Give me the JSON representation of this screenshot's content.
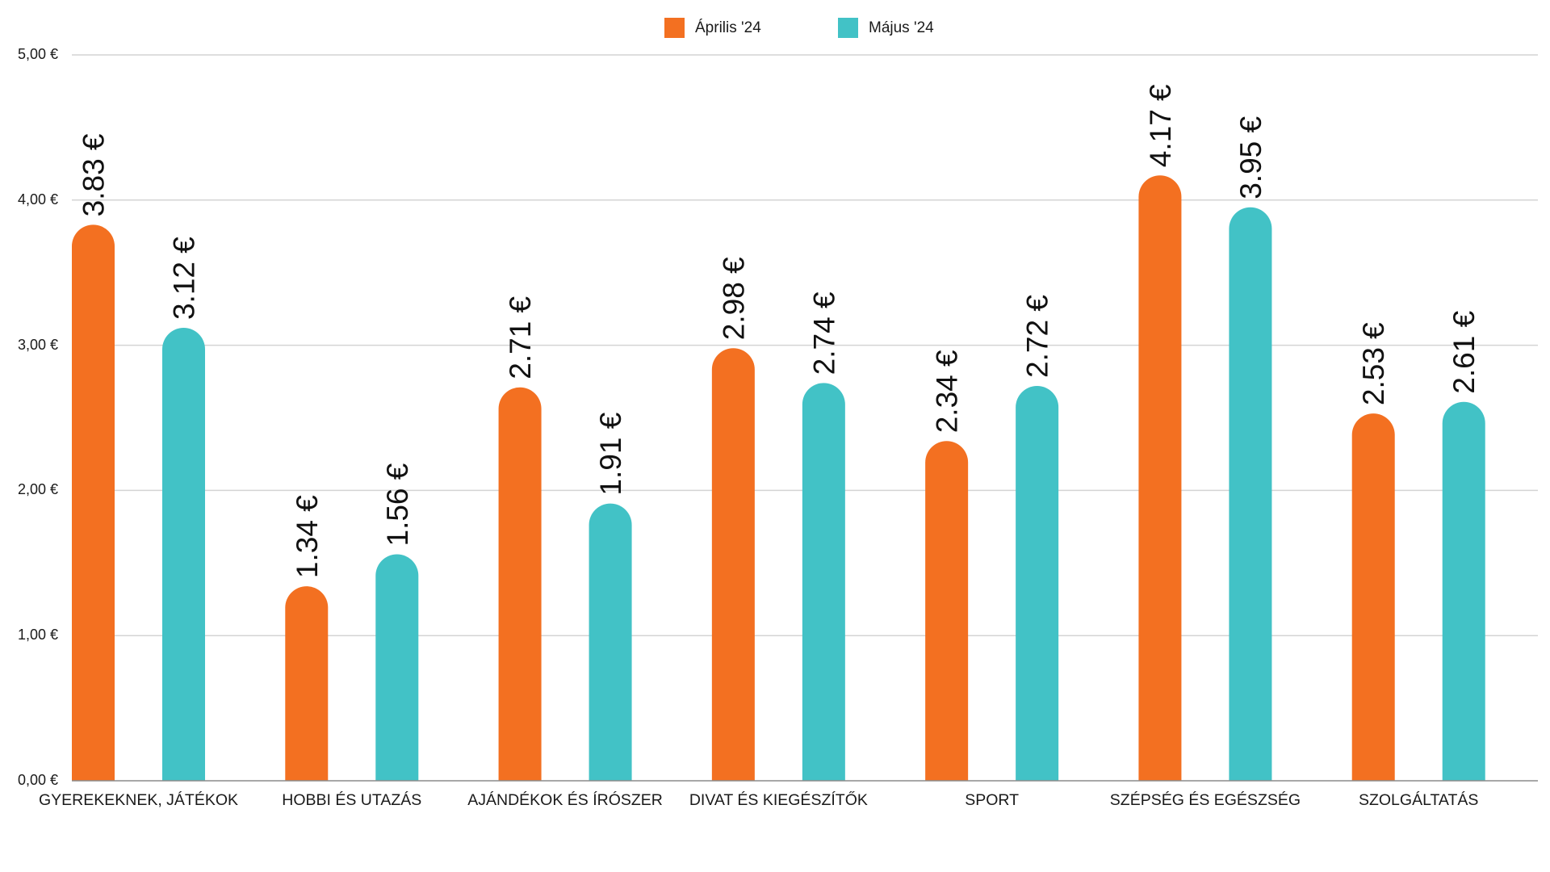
{
  "chart_data": {
    "type": "bar",
    "title": "",
    "xlabel": "",
    "ylabel": "",
    "ylim": [
      0,
      5
    ],
    "yticks": [
      0,
      1,
      2,
      3,
      4,
      5
    ],
    "ytick_labels": [
      "0,00 €",
      "1,00 €",
      "2,00 €",
      "3,00 €",
      "4,00 €",
      "5,00 €"
    ],
    "grid": true,
    "legend_position": "top-center",
    "categories": [
      "GYEREKEKNEK, JÁTÉKOK",
      "HOBBI ÉS UTAZÁS",
      "AJÁNDÉKOK ÉS ÍRÓSZER",
      "DIVAT ÉS KIEGÉSZÍTŐK",
      "SPORT",
      "SZÉPSÉG ÉS EGÉSZSÉG",
      "SZOLGÁLTATÁS"
    ],
    "series": [
      {
        "name": "Április '24",
        "color": "#f37021",
        "values": [
          3.83,
          1.34,
          2.71,
          2.98,
          2.34,
          4.17,
          2.53
        ],
        "labels": [
          "3.83 €",
          "1.34 €",
          "2.71 €",
          "2.98 €",
          "2.34 €",
          "4.17 €",
          "2.53 €"
        ]
      },
      {
        "name": "Május '24",
        "color": "#42c2c6",
        "values": [
          3.12,
          1.56,
          1.91,
          2.74,
          2.72,
          3.95,
          2.61
        ],
        "labels": [
          "3.12 €",
          "1.56 €",
          "1.91 €",
          "2.74 €",
          "2.72 €",
          "3.95 €",
          "2.61 €"
        ]
      }
    ]
  }
}
